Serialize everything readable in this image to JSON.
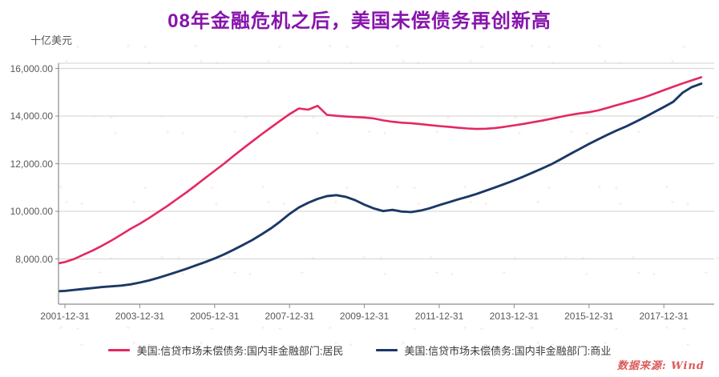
{
  "title": "08年金融危机之后，美国未偿债务再创新高",
  "unit_label": "十亿美元",
  "source_note": "数据来源: Wind",
  "colors": {
    "title": "#8714AC",
    "household_line": "#E42860",
    "business_line": "#1B3866",
    "grid": "#D9D9D9",
    "axis": "#8C8C8C",
    "tick_text": "#595959",
    "watermark": "#F0935C",
    "source_text": "#DD5A5A",
    "legend_text": "#3B3B3B"
  },
  "legend": {
    "items": [
      {
        "label": "美国:信贷市场未偿债务:国内非金融部门:居民"
      },
      {
        "label": "美国:信贷市场未偿债务:国内非金融部门:商业"
      }
    ]
  },
  "chart_data": {
    "type": "line",
    "title": "08年金融危机之后，美国未偿债务再创新高",
    "xlabel": "",
    "ylabel": "十亿美元",
    "ylim": [
      6100,
      16200
    ],
    "grid": "horizontal",
    "legend_position": "bottom",
    "x_start": "2001-09-30",
    "frequency": "quarterly",
    "y_ticks": [
      {
        "value": 16000,
        "label": "16,000.00"
      },
      {
        "value": 14000,
        "label": "14,000.00"
      },
      {
        "value": 12000,
        "label": "12,000.00"
      },
      {
        "value": 10000,
        "label": "10,000.00"
      },
      {
        "value": 8000,
        "label": "8,000.00"
      }
    ],
    "x_tick_labels": [
      "2001-12-31",
      "2003-12-31",
      "2005-12-31",
      "2007-12-31",
      "2009-12-31",
      "2011-12-31",
      "2013-12-31",
      "2015-12-31",
      "2017-12-31"
    ],
    "x_tick_value_indices": [
      1,
      9,
      17,
      25,
      33,
      41,
      49,
      57,
      65
    ],
    "series": [
      {
        "name": "美国:信贷市场未偿债务:国内非金融部门:居民",
        "color": "#E42860",
        "values": [
          7790,
          7870,
          8000,
          8180,
          8360,
          8560,
          8780,
          9020,
          9260,
          9480,
          9720,
          9980,
          10240,
          10520,
          10800,
          11100,
          11400,
          11700,
          12000,
          12320,
          12630,
          12930,
          13230,
          13520,
          13800,
          14080,
          14320,
          14270,
          14430,
          14050,
          14010,
          13980,
          13960,
          13940,
          13900,
          13820,
          13760,
          13720,
          13700,
          13660,
          13620,
          13580,
          13550,
          13510,
          13480,
          13460,
          13470,
          13500,
          13550,
          13610,
          13670,
          13740,
          13810,
          13890,
          13970,
          14050,
          14110,
          14160,
          14240,
          14350,
          14460,
          14570,
          14680,
          14800,
          14940,
          15090,
          15230,
          15370,
          15500,
          15630
        ]
      },
      {
        "name": "美国:信贷市场未偿债务:国内非金融部门:商业",
        "color": "#1B3866",
        "values": [
          6640,
          6660,
          6700,
          6740,
          6780,
          6820,
          6850,
          6880,
          6930,
          7010,
          7100,
          7210,
          7330,
          7460,
          7590,
          7730,
          7870,
          8020,
          8190,
          8380,
          8580,
          8790,
          9030,
          9280,
          9570,
          9890,
          10160,
          10360,
          10520,
          10640,
          10680,
          10610,
          10470,
          10280,
          10120,
          10010,
          10060,
          9990,
          9970,
          10030,
          10130,
          10260,
          10380,
          10500,
          10610,
          10730,
          10870,
          11010,
          11150,
          11300,
          11460,
          11630,
          11800,
          11980,
          12190,
          12410,
          12620,
          12830,
          13030,
          13220,
          13400,
          13570,
          13760,
          13960,
          14170,
          14380,
          14600,
          14980,
          15220,
          15360
        ]
      }
    ]
  }
}
